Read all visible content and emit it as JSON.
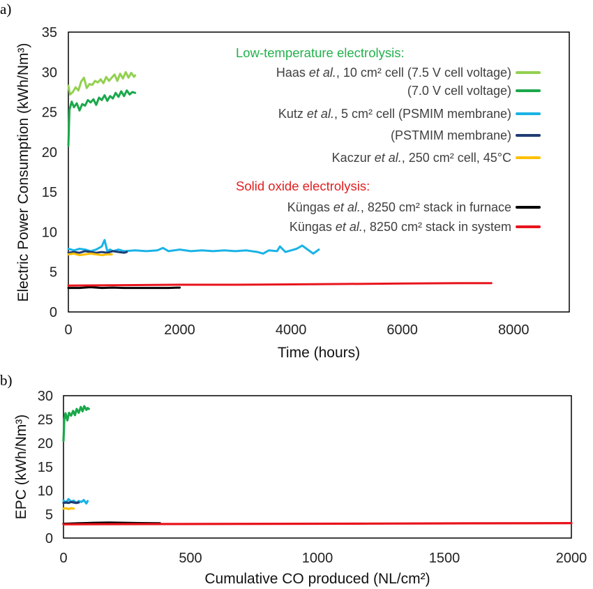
{
  "chart_data": [
    {
      "panel": "a)",
      "type": "line",
      "xlabel": "Time (hours)",
      "ylabel": "Electric Power Consumption (kWh/Nm³)",
      "xlim": [
        0,
        9000
      ],
      "ylim": [
        0,
        35
      ],
      "xticks": [
        "0",
        "2000",
        "4000",
        "6000",
        "8000"
      ],
      "yticks": [
        "0",
        "5",
        "10",
        "15",
        "20",
        "25",
        "30",
        "35"
      ],
      "grid": false,
      "legend": {
        "placement": "top-right",
        "groups": [
          {
            "header": "Low-temperature electrolysis:",
            "header_color": "#22b14c",
            "entries": [
              {
                "pre": "Haas ",
                "ital": "et al.",
                "post": ", 10 cm² cell (7.5 V cell voltage)",
                "color": "#92d050"
              },
              {
                "pre": "",
                "ital": "",
                "post": "(7.0 V cell voltage)",
                "color": "#1aa84a"
              },
              {
                "pre": "Kutz ",
                "ital": "et al.",
                "post": ", 5 cm² cell (PSMIM membrane)",
                "color": "#1ab3e6"
              },
              {
                "pre": "",
                "ital": "",
                "post": "(PSTMIM membrane)",
                "color": "#1f3c73"
              },
              {
                "pre": "Kaczur ",
                "ital": "et al.",
                "post": ", 250 cm² cell, 45°C",
                "color": "#ffc000"
              }
            ]
          },
          {
            "header": "Solid oxide electrolysis:",
            "header_color": "#e02020",
            "entries": [
              {
                "pre": "Küngas ",
                "ital": "et al.",
                "post": ", 8250 cm² stack in furnace",
                "color": "#000000"
              },
              {
                "pre": "Küngas ",
                "ital": "et al.",
                "post": ", 8250 cm² stack in system",
                "color": "#e8141c"
              }
            ]
          }
        ]
      },
      "series": [
        {
          "color": "#92d050",
          "x": [
            0,
            30,
            80,
            130,
            180,
            230,
            280,
            330,
            380,
            430,
            480,
            530,
            580,
            630,
            680,
            730,
            780,
            830,
            880,
            930,
            980,
            1030,
            1080,
            1130,
            1180,
            1200
          ],
          "y": [
            28.3,
            27.2,
            27.5,
            28.1,
            27.7,
            28.8,
            29.3,
            28.0,
            28.5,
            28.4,
            28.9,
            28.7,
            29.1,
            28.6,
            29.4,
            28.9,
            29.3,
            29.7,
            28.9,
            29.8,
            29.2,
            30.0,
            29.3,
            29.9,
            29.4,
            29.6
          ]
        },
        {
          "color": "#1aa84a",
          "x": [
            0,
            20,
            60,
            100,
            150,
            200,
            250,
            300,
            350,
            400,
            450,
            500,
            550,
            600,
            650,
            700,
            750,
            800,
            850,
            900,
            950,
            1000,
            1050,
            1100,
            1150,
            1200
          ],
          "y": [
            20.8,
            25.3,
            26.3,
            25.6,
            26.1,
            25.2,
            26.0,
            25.8,
            26.5,
            26.2,
            26.6,
            25.9,
            26.8,
            26.5,
            27.1,
            26.4,
            27.0,
            26.7,
            27.4,
            26.9,
            27.6,
            27.0,
            27.7,
            27.2,
            27.5,
            27.4
          ]
        },
        {
          "color": "#1ab3e6",
          "x": [
            0,
            100,
            200,
            300,
            400,
            500,
            600,
            650,
            700,
            750,
            800,
            900,
            1000,
            1200,
            1400,
            1600,
            1700,
            1800,
            2000,
            2200,
            2400,
            2600,
            2800,
            3000,
            3200,
            3400,
            3500,
            3600,
            3750,
            3800,
            3900,
            4000,
            4100,
            4200,
            4300,
            4400,
            4500
          ],
          "y": [
            7.9,
            7.7,
            7.9,
            7.8,
            7.6,
            7.8,
            8.2,
            9.0,
            7.6,
            7.8,
            7.6,
            7.8,
            7.6,
            7.7,
            7.6,
            7.7,
            8.0,
            7.6,
            7.8,
            7.6,
            7.7,
            7.6,
            7.7,
            7.6,
            7.7,
            7.5,
            7.3,
            7.7,
            7.6,
            8.2,
            7.5,
            7.7,
            7.9,
            8.3,
            7.8,
            7.3,
            7.8
          ]
        },
        {
          "color": "#1f3c73",
          "x": [
            0,
            100,
            200,
            300,
            400,
            500,
            600,
            700,
            800,
            900,
            1000,
            1050
          ],
          "y": [
            7.4,
            7.5,
            7.4,
            7.6,
            7.5,
            7.4,
            7.5,
            7.4,
            7.6,
            7.5,
            7.4,
            7.5
          ]
        },
        {
          "color": "#ffc000",
          "x": [
            0,
            100,
            200,
            300,
            400,
            500,
            600,
            700,
            780
          ],
          "y": [
            7.2,
            7.3,
            7.1,
            7.2,
            7.3,
            7.2,
            7.1,
            7.2,
            7.2
          ]
        },
        {
          "color": "#000000",
          "x": [
            0,
            200,
            400,
            600,
            800,
            1000,
            1200,
            1400,
            1600,
            1800,
            2000
          ],
          "y": [
            3.0,
            3.0,
            3.1,
            3.0,
            3.05,
            3.0,
            3.0,
            3.0,
            3.0,
            3.0,
            3.05
          ]
        },
        {
          "color": "#e8141c",
          "x": [
            0,
            1000,
            2000,
            3000,
            4000,
            5000,
            6000,
            7000,
            7600
          ],
          "y": [
            3.3,
            3.35,
            3.4,
            3.4,
            3.45,
            3.5,
            3.55,
            3.6,
            3.6
          ]
        }
      ]
    },
    {
      "panel": "b)",
      "type": "line",
      "xlabel": "Cumulative CO produced (NL/cm²)",
      "ylabel": "EPC (kWh/Nm³)",
      "xlim": [
        0,
        2000
      ],
      "ylim": [
        0,
        30
      ],
      "xticks": [
        "0",
        "500",
        "1000",
        "1500",
        "2000"
      ],
      "yticks": [
        "0",
        "5",
        "10",
        "15",
        "20",
        "25",
        "30"
      ],
      "grid": false,
      "series": [
        {
          "color": "#1aa84a",
          "x": [
            0,
            3,
            8,
            15,
            22,
            30,
            38,
            45,
            52,
            60,
            68,
            75,
            82,
            90,
            95,
            100
          ],
          "y": [
            20.5,
            25.0,
            26.3,
            24.8,
            26.4,
            25.8,
            26.8,
            25.9,
            27.2,
            26.4,
            27.6,
            26.7,
            27.8,
            27.0,
            27.4,
            27.2
          ]
        },
        {
          "color": "#1ab3e6",
          "x": [
            0,
            10,
            20,
            30,
            40,
            50,
            60,
            70,
            80,
            90,
            95
          ],
          "y": [
            7.9,
            7.5,
            8.2,
            7.6,
            7.9,
            7.4,
            7.8,
            7.6,
            8.0,
            7.3,
            7.8
          ]
        },
        {
          "color": "#1f3c73",
          "x": [
            0,
            10,
            20,
            30,
            40,
            50,
            60
          ],
          "y": [
            7.4,
            7.5,
            7.4,
            7.6,
            7.5,
            7.4,
            7.5
          ]
        },
        {
          "color": "#ffc000",
          "x": [
            0,
            10,
            20,
            30,
            40
          ],
          "y": [
            6.2,
            6.3,
            6.1,
            6.3,
            6.2
          ]
        },
        {
          "color": "#000000",
          "x": [
            0,
            60,
            120,
            180,
            240,
            300,
            380
          ],
          "y": [
            3.0,
            3.1,
            3.2,
            3.25,
            3.2,
            3.15,
            3.1
          ]
        },
        {
          "color": "#e8141c",
          "x": [
            0,
            400,
            800,
            1200,
            1600,
            2000
          ],
          "y": [
            2.9,
            2.95,
            3.0,
            3.05,
            3.1,
            3.15
          ]
        }
      ]
    }
  ]
}
